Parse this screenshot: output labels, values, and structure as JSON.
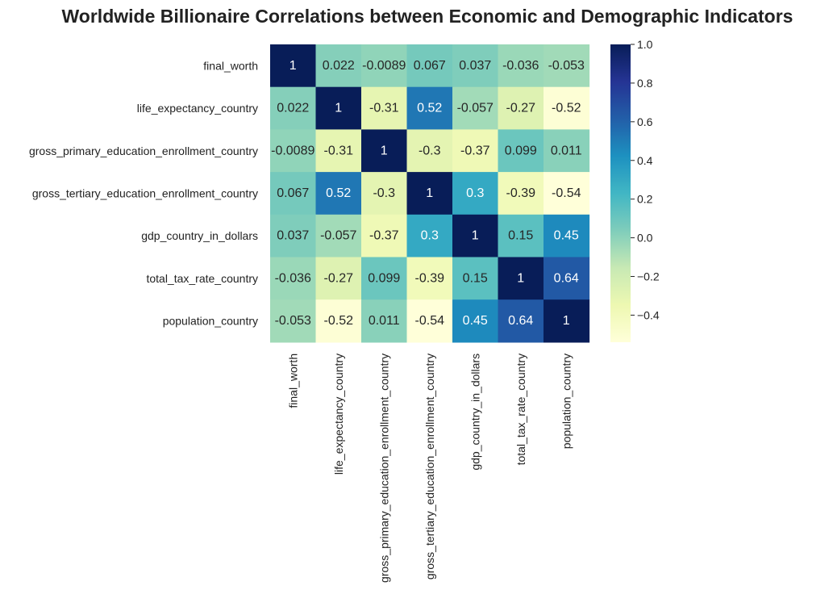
{
  "chart_data": {
    "type": "heatmap",
    "title": "Worldwide Billionaire Correlations between Economic and Demographic Indicators",
    "xlabel": "",
    "ylabel": "",
    "labels": [
      "final_worth",
      "life_expectancy_country",
      "gross_primary_education_enrollment_country",
      "gross_tertiary_education_enrollment_country",
      "gdp_country_in_dollars",
      "total_tax_rate_country",
      "population_country"
    ],
    "values": [
      [
        1,
        0.022,
        -0.0089,
        0.067,
        0.037,
        -0.036,
        -0.053
      ],
      [
        0.022,
        1,
        -0.31,
        0.52,
        -0.057,
        -0.27,
        -0.52
      ],
      [
        -0.0089,
        -0.31,
        1,
        -0.3,
        -0.37,
        0.099,
        0.011
      ],
      [
        0.067,
        0.52,
        -0.3,
        1,
        0.3,
        -0.39,
        -0.54
      ],
      [
        0.037,
        -0.057,
        -0.37,
        0.3,
        1,
        0.15,
        0.45
      ],
      [
        -0.036,
        -0.27,
        0.099,
        -0.39,
        0.15,
        1,
        0.64
      ],
      [
        -0.053,
        -0.52,
        0.011,
        -0.54,
        0.45,
        0.64,
        1
      ]
    ],
    "cell_labels": [
      [
        "1",
        "0.022",
        "-0.0089",
        "0.067",
        "0.037",
        "-0.036",
        "-0.053"
      ],
      [
        "0.022",
        "1",
        "-0.31",
        "0.52",
        "-0.057",
        "-0.27",
        "-0.52"
      ],
      [
        "-0.0089",
        "-0.31",
        "1",
        "-0.3",
        "-0.37",
        "0.099",
        "0.011"
      ],
      [
        "0.067",
        "0.52",
        "-0.3",
        "1",
        "0.3",
        "-0.39",
        "-0.54"
      ],
      [
        "0.037",
        "-0.057",
        "-0.37",
        "0.3",
        "1",
        "0.15",
        "0.45"
      ],
      [
        "-0.036",
        "-0.27",
        "0.099",
        "-0.39",
        "0.15",
        "1",
        "0.64"
      ],
      [
        "-0.053",
        "-0.52",
        "0.011",
        "-0.54",
        "0.45",
        "0.64",
        "1"
      ]
    ],
    "colormap": "YlGnBu",
    "colormap_stops": [
      "#ffffd9",
      "#edf8b1",
      "#c7e9b4",
      "#7fcdbb",
      "#41b6c4",
      "#1d91c0",
      "#225ea8",
      "#253494",
      "#081d58"
    ],
    "vmin": -0.54,
    "vmax": 1,
    "colorbar": {
      "ticks": [
        -0.4,
        -0.2,
        0.0,
        0.2,
        0.4,
        0.6,
        0.8,
        1.0
      ],
      "tick_labels": [
        "−0.4",
        "−0.2",
        "0.0",
        "0.2",
        "0.4",
        "0.6",
        "0.8",
        "1.0"
      ],
      "placement": "right"
    },
    "grid": false
  }
}
